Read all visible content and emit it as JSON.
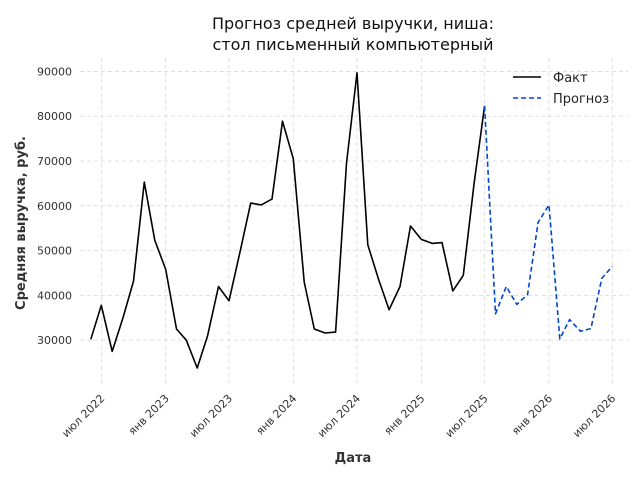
{
  "chart_data": {
    "type": "line",
    "title_line1": "Прогноз средней выручки, ниша:",
    "title_line2": "стол письменный компьютерный",
    "xlabel": "Дата",
    "ylabel": "Средняя выручка, руб.",
    "ylim": [
      20000,
      93000
    ],
    "yticks": [
      30000,
      40000,
      50000,
      60000,
      70000,
      80000,
      90000
    ],
    "xlim": [
      "2022-05-01",
      "2026-08-15"
    ],
    "xticks": [
      {
        "date": "2022-07-01",
        "label": "июл 2022"
      },
      {
        "date": "2023-01-01",
        "label": "янв 2023"
      },
      {
        "date": "2023-07-01",
        "label": "июл 2023"
      },
      {
        "date": "2024-01-01",
        "label": "янв 2024"
      },
      {
        "date": "2024-07-01",
        "label": "июл 2024"
      },
      {
        "date": "2025-01-01",
        "label": "янв 2025"
      },
      {
        "date": "2025-07-01",
        "label": "июл 2025"
      },
      {
        "date": "2026-01-01",
        "label": "янв 2026"
      },
      {
        "date": "2026-07-01",
        "label": "июл 2026"
      }
    ],
    "grid": true,
    "legend_position": "top-right",
    "series": [
      {
        "name": "Факт",
        "color": "#000000",
        "style": "solid",
        "points": [
          [
            "2022-06-01",
            30200
          ],
          [
            "2022-07-01",
            37800
          ],
          [
            "2022-08-01",
            27500
          ],
          [
            "2022-09-01",
            35000
          ],
          [
            "2022-10-01",
            43200
          ],
          [
            "2022-11-01",
            65300
          ],
          [
            "2022-12-01",
            52300
          ],
          [
            "2023-01-01",
            45800
          ],
          [
            "2023-02-01",
            32500
          ],
          [
            "2023-03-01",
            30000
          ],
          [
            "2023-04-01",
            23800
          ],
          [
            "2023-05-01",
            31000
          ],
          [
            "2023-06-01",
            42000
          ],
          [
            "2023-07-01",
            38800
          ],
          [
            "2023-08-01",
            49500
          ],
          [
            "2023-09-01",
            60600
          ],
          [
            "2023-10-01",
            60200
          ],
          [
            "2023-11-01",
            61500
          ],
          [
            "2023-12-01",
            78900
          ],
          [
            "2024-01-01",
            70500
          ],
          [
            "2024-02-01",
            43000
          ],
          [
            "2024-03-01",
            32500
          ],
          [
            "2024-04-01",
            31600
          ],
          [
            "2024-05-01",
            31800
          ],
          [
            "2024-06-01",
            69500
          ],
          [
            "2024-07-01",
            89700
          ],
          [
            "2024-08-01",
            51300
          ],
          [
            "2024-09-01",
            43500
          ],
          [
            "2024-10-01",
            36800
          ],
          [
            "2024-11-01",
            42000
          ],
          [
            "2024-12-01",
            55500
          ],
          [
            "2025-01-01",
            52500
          ],
          [
            "2025-02-01",
            51600
          ],
          [
            "2025-03-01",
            51800
          ],
          [
            "2025-04-01",
            41000
          ],
          [
            "2025-05-01",
            44500
          ],
          [
            "2025-06-01",
            65000
          ],
          [
            "2025-07-01",
            82300
          ]
        ]
      },
      {
        "name": "Прогноз",
        "color": "#0047cc",
        "style": "dashed",
        "points": [
          [
            "2025-07-01",
            82300
          ],
          [
            "2025-08-01",
            35900
          ],
          [
            "2025-09-01",
            42000
          ],
          [
            "2025-10-01",
            38000
          ],
          [
            "2025-11-01",
            40200
          ],
          [
            "2025-12-01",
            56300
          ],
          [
            "2026-01-01",
            60200
          ],
          [
            "2026-02-01",
            30300
          ],
          [
            "2026-03-01",
            34600
          ],
          [
            "2026-04-01",
            32000
          ],
          [
            "2026-05-01",
            32600
          ],
          [
            "2026-06-01",
            43800
          ],
          [
            "2026-07-01",
            46500
          ]
        ]
      }
    ]
  }
}
